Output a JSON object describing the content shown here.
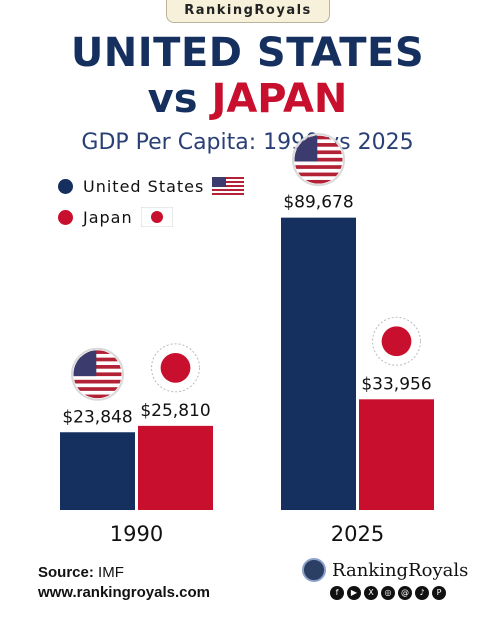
{
  "brand_badge": "RankingRoyals",
  "title": {
    "line1": "UNITED STATES",
    "vs": "vs",
    "country2": "JAPAN"
  },
  "subtitle": "GDP Per Capita:  1990 vs 2025",
  "legend": [
    {
      "label": "United States",
      "color": "#15305f",
      "icon": "us-flag-icon"
    },
    {
      "label": "Japan",
      "color": "#c8102e",
      "icon": "japan-flag-icon"
    }
  ],
  "chart_data": {
    "type": "bar",
    "categories": [
      "1990",
      "2025"
    ],
    "series": [
      {
        "name": "United States",
        "color": "#15305f",
        "values": [
          23848,
          89678
        ],
        "labels": [
          "$23,848",
          "$89,678"
        ]
      },
      {
        "name": "Japan",
        "color": "#c8102e",
        "values": [
          25810,
          33956
        ],
        "labels": [
          "$25,810",
          "$33,956"
        ]
      }
    ],
    "ylim": [
      0,
      100000
    ],
    "grid": false,
    "legend_position": "top-left"
  },
  "footer": {
    "source_label": "Source:",
    "source_value": " IMF",
    "website": "www.rankingroyals.com",
    "logo_text": "RankingRoyals",
    "social_icons": [
      "facebook-icon",
      "youtube-icon",
      "x-icon",
      "instagram-icon",
      "threads-icon",
      "tiktok-icon",
      "pinterest-icon"
    ]
  }
}
